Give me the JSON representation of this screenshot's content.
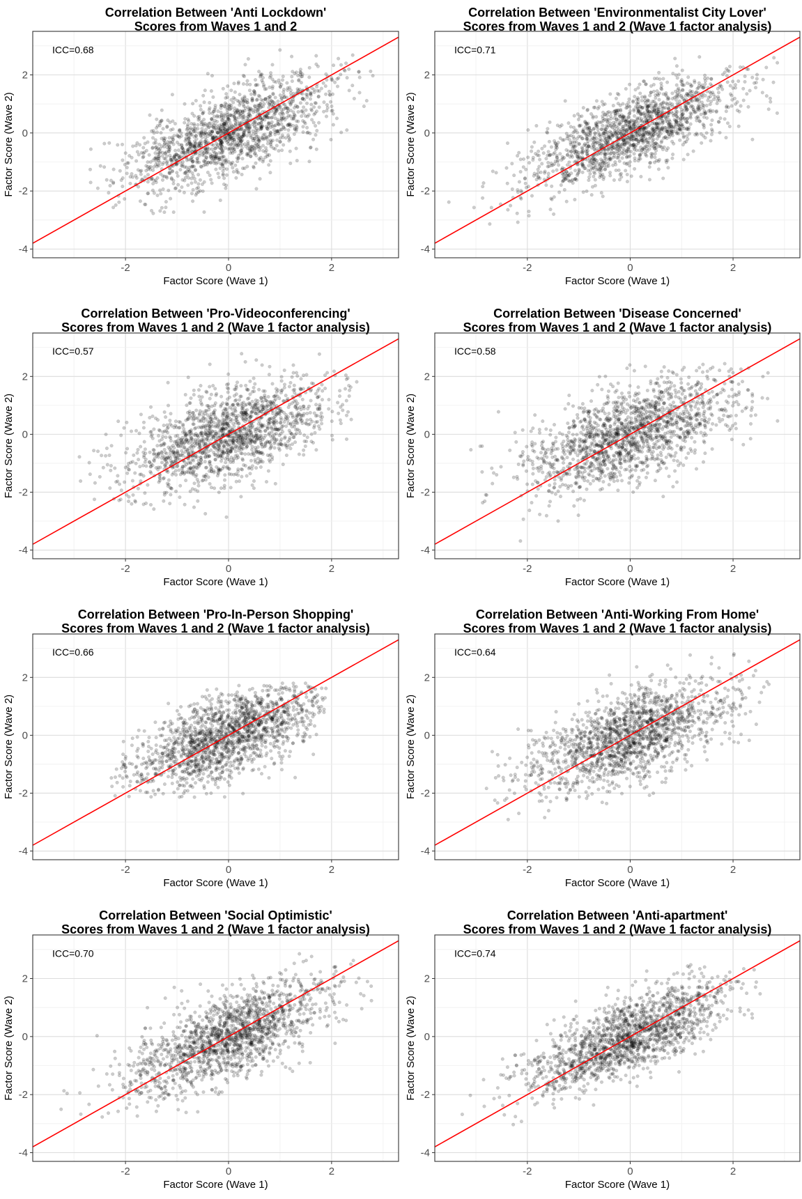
{
  "chart_data": [
    {
      "type": "scatter",
      "title_line1": "Correlation Between 'Anti Lockdown'",
      "title_line2": "Scores from Waves 1 and 2",
      "xlabel": "Factor Score (Wave 1)",
      "ylabel": "Factor Score (Wave 2)",
      "annotation": "ICC=0.68",
      "xlim": [
        -3.8,
        3.3
      ],
      "ylim": [
        -4.3,
        3.5
      ],
      "x_ticks": [
        "-2",
        "0",
        "2"
      ],
      "y_ticks": [
        "-4",
        "-2",
        "0",
        "2"
      ],
      "fit_line": {
        "slope": 1,
        "intercept": 0
      },
      "point_cloud": {
        "n": 1600,
        "center": [
          0,
          0
        ],
        "x_sd": 1.0,
        "y_sd": 1.0,
        "correlation": 0.68,
        "clip_x": [
          -3.2,
          3.0
        ],
        "clip_y": [
          -3.0,
          3.2
        ],
        "seed": 11
      },
      "grid": true,
      "legend": "none",
      "colors": {
        "points": "#000000",
        "fit_line": "#ff0000"
      }
    },
    {
      "type": "scatter",
      "title_line1": "Correlation Between 'Environmentalist City Lover'",
      "title_line2": "Scores from Waves 1 and 2 (Wave 1 factor analysis)",
      "xlabel": "Factor Score (Wave 1)",
      "ylabel": "Factor Score (Wave 2)",
      "annotation": "ICC=0.71",
      "xlim": [
        -3.8,
        3.3
      ],
      "ylim": [
        -4.3,
        3.5
      ],
      "x_ticks": [
        "-2",
        "0",
        "2"
      ],
      "y_ticks": [
        "-4",
        "-2",
        "0",
        "2"
      ],
      "fit_line": {
        "slope": 1,
        "intercept": 0
      },
      "point_cloud": {
        "n": 1600,
        "center": [
          0,
          0
        ],
        "x_sd": 1.0,
        "y_sd": 0.95,
        "correlation": 0.72,
        "clip_x": [
          -3.6,
          3.0
        ],
        "clip_y": [
          -3.2,
          2.7
        ],
        "seed": 23
      },
      "grid": true,
      "legend": "none",
      "colors": {
        "points": "#000000",
        "fit_line": "#ff0000"
      }
    },
    {
      "type": "scatter",
      "title_line1": "Correlation Between 'Pro-Videoconferencing'",
      "title_line2": "Scores from Waves 1 and 2 (Wave 1 factor analysis)",
      "xlabel": "Factor Score (Wave 1)",
      "ylabel": "Factor Score (Wave 2)",
      "annotation": "ICC=0.57",
      "xlim": [
        -3.8,
        3.3
      ],
      "ylim": [
        -4.3,
        3.5
      ],
      "x_ticks": [
        "-2",
        "0",
        "2"
      ],
      "y_ticks": [
        "-4",
        "-2",
        "0",
        "2"
      ],
      "fit_line": {
        "slope": 1,
        "intercept": 0
      },
      "point_cloud": {
        "n": 1600,
        "center": [
          0,
          0
        ],
        "x_sd": 1.0,
        "y_sd": 0.95,
        "correlation": 0.57,
        "clip_x": [
          -3.3,
          2.5
        ],
        "clip_y": [
          -3.3,
          2.8
        ],
        "seed": 37
      },
      "grid": true,
      "legend": "none",
      "colors": {
        "points": "#000000",
        "fit_line": "#ff0000"
      }
    },
    {
      "type": "scatter",
      "title_line1": "Correlation Between 'Disease Concerned'",
      "title_line2": "Scores from Waves 1 and 2 (Wave 1 factor analysis)",
      "xlabel": "Factor Score (Wave 1)",
      "ylabel": "Factor Score (Wave 2)",
      "annotation": "ICC=0.58",
      "xlim": [
        -3.8,
        3.3
      ],
      "ylim": [
        -4.3,
        3.5
      ],
      "x_ticks": [
        "-2",
        "0",
        "2"
      ],
      "y_ticks": [
        "-4",
        "-2",
        "0",
        "2"
      ],
      "fit_line": {
        "slope": 1,
        "intercept": 0
      },
      "point_cloud": {
        "n": 1600,
        "center": [
          0,
          0
        ],
        "x_sd": 1.0,
        "y_sd": 1.0,
        "correlation": 0.58,
        "clip_x": [
          -3.5,
          2.9
        ],
        "clip_y": [
          -3.8,
          2.5
        ],
        "seed": 41
      },
      "grid": true,
      "legend": "none",
      "colors": {
        "points": "#000000",
        "fit_line": "#ff0000"
      }
    },
    {
      "type": "scatter",
      "title_line1": "Correlation Between 'Pro-In-Person Shopping'",
      "title_line2": "Scores from Waves 1 and 2 (Wave 1 factor analysis)",
      "xlabel": "Factor Score (Wave 1)",
      "ylabel": "Factor Score (Wave 2)",
      "annotation": "ICC=0.66",
      "xlim": [
        -3.8,
        3.3
      ],
      "ylim": [
        -4.3,
        3.5
      ],
      "x_ticks": [
        "-2",
        "0",
        "2"
      ],
      "y_ticks": [
        "-4",
        "-2",
        "0",
        "2"
      ],
      "fit_line": {
        "slope": 1,
        "intercept": 0
      },
      "point_cloud": {
        "n": 1600,
        "center": [
          0,
          0
        ],
        "x_sd": 0.95,
        "y_sd": 0.95,
        "correlation": 0.66,
        "clip_x": [
          -2.3,
          1.9
        ],
        "clip_y": [
          -2.2,
          1.8
        ],
        "seed": 53
      },
      "grid": true,
      "legend": "none",
      "colors": {
        "points": "#000000",
        "fit_line": "#ff0000"
      }
    },
    {
      "type": "scatter",
      "title_line1": "Correlation Between 'Anti-Working From Home'",
      "title_line2": "Scores from Waves 1 and 2 (Wave 1 factor analysis)",
      "xlabel": "Factor Score (Wave 1)",
      "ylabel": "Factor Score (Wave 2)",
      "annotation": "ICC=0.64",
      "xlim": [
        -3.8,
        3.3
      ],
      "ylim": [
        -4.3,
        3.5
      ],
      "x_ticks": [
        "-2",
        "0",
        "2"
      ],
      "y_ticks": [
        "-4",
        "-2",
        "0",
        "2"
      ],
      "fit_line": {
        "slope": 1,
        "intercept": 0
      },
      "point_cloud": {
        "n": 1600,
        "center": [
          0,
          0
        ],
        "x_sd": 1.0,
        "y_sd": 0.95,
        "correlation": 0.64,
        "clip_x": [
          -2.8,
          2.8
        ],
        "clip_y": [
          -3.0,
          2.9
        ],
        "seed": 67
      },
      "grid": true,
      "legend": "none",
      "colors": {
        "points": "#000000",
        "fit_line": "#ff0000"
      }
    },
    {
      "type": "scatter",
      "title_line1": "Correlation Between 'Social Optimistic'",
      "title_line2": "Scores from Waves 1 and 2 (Wave 1 factor analysis)",
      "xlabel": "Factor Score (Wave 1)",
      "ylabel": "Factor Score (Wave 2)",
      "annotation": "ICC=0.70",
      "xlim": [
        -3.8,
        3.3
      ],
      "ylim": [
        -4.3,
        3.5
      ],
      "x_ticks": [
        "-2",
        "0",
        "2"
      ],
      "y_ticks": [
        "-4",
        "-2",
        "0",
        "2"
      ],
      "fit_line": {
        "slope": 1,
        "intercept": 0
      },
      "point_cloud": {
        "n": 1600,
        "center": [
          0,
          0
        ],
        "x_sd": 1.0,
        "y_sd": 1.0,
        "correlation": 0.7,
        "clip_x": [
          -3.3,
          3.0
        ],
        "clip_y": [
          -3.6,
          2.9
        ],
        "seed": 79
      },
      "grid": true,
      "legend": "none",
      "colors": {
        "points": "#000000",
        "fit_line": "#ff0000"
      }
    },
    {
      "type": "scatter",
      "title_line1": "Correlation Between 'Anti-apartment'",
      "title_line2": "Scores from Waves 1 and 2 (Wave 1 factor analysis)",
      "xlabel": "Factor Score (Wave 1)",
      "ylabel": "Factor Score (Wave 2)",
      "annotation": "ICC=0.74",
      "xlim": [
        -3.8,
        3.3
      ],
      "ylim": [
        -4.3,
        3.5
      ],
      "x_ticks": [
        "-2",
        "0",
        "2"
      ],
      "y_ticks": [
        "-4",
        "-2",
        "0",
        "2"
      ],
      "fit_line": {
        "slope": 1,
        "intercept": 0
      },
      "point_cloud": {
        "n": 1600,
        "center": [
          0,
          0
        ],
        "x_sd": 1.0,
        "y_sd": 0.95,
        "correlation": 0.74,
        "clip_x": [
          -3.6,
          2.6
        ],
        "clip_y": [
          -3.8,
          2.5
        ],
        "seed": 97
      },
      "grid": true,
      "legend": "none",
      "colors": {
        "points": "#000000",
        "fit_line": "#ff0000"
      }
    }
  ]
}
